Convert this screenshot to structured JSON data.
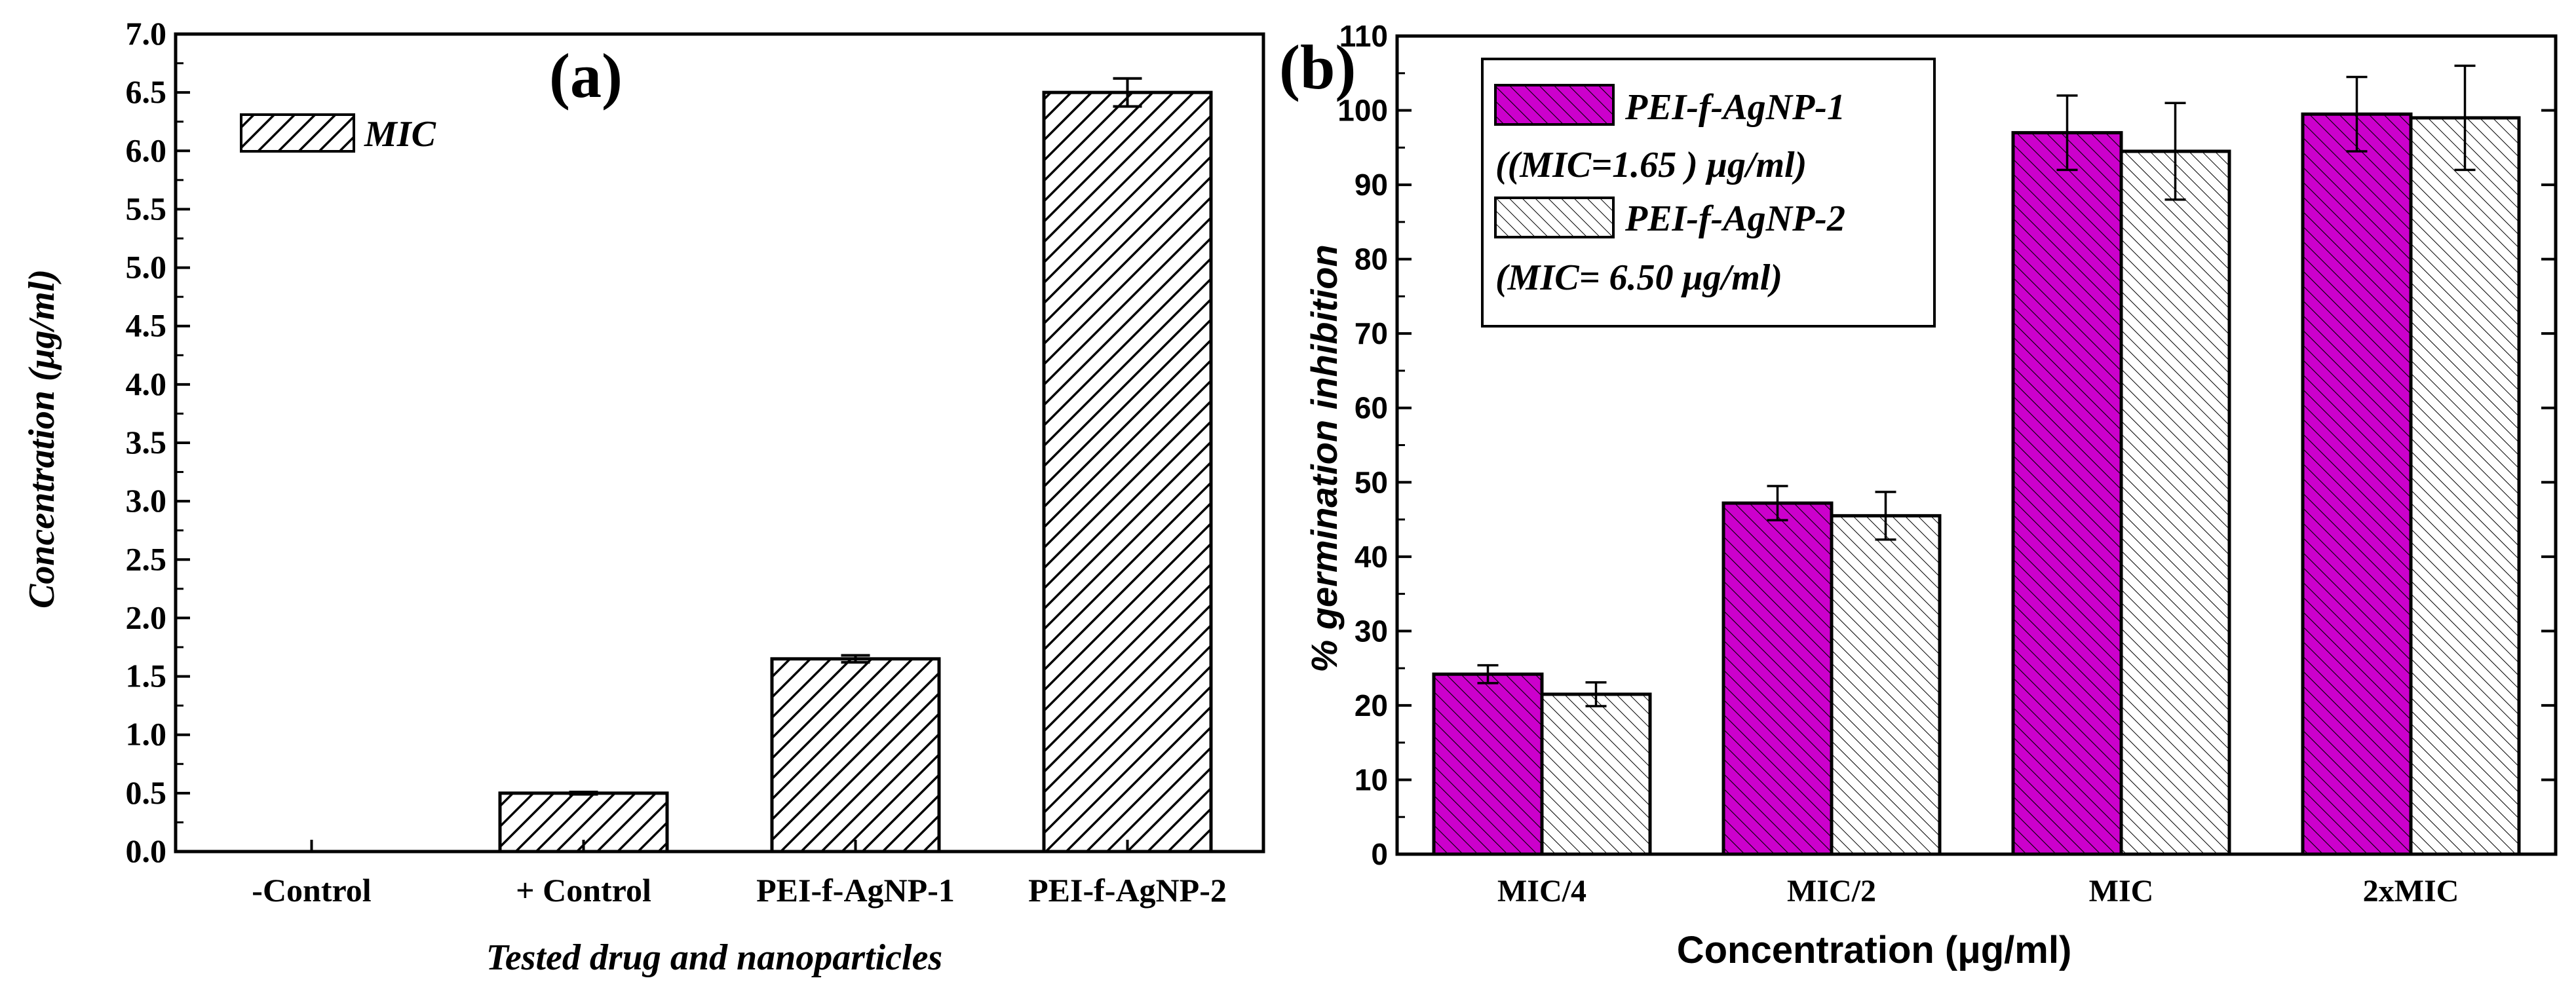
{
  "chart_data": [
    {
      "panel": "(a)",
      "type": "bar",
      "categories": [
        "-Control",
        "+ Control",
        "PEI-f-AgNP-1",
        "PEI-f-AgNP-2"
      ],
      "values": [
        0.0,
        0.5,
        1.65,
        6.5
      ],
      "errors": [
        0.0,
        0.01,
        0.03,
        0.12
      ],
      "ylim": [
        0,
        7.0
      ],
      "yticks": [
        "0.0",
        "0.5",
        "1.0",
        "1.5",
        "2.0",
        "2.5",
        "3.0",
        "3.5",
        "4.0",
        "4.5",
        "5.0",
        "5.5",
        "6.0",
        "6.5",
        "7.0"
      ],
      "ylabel": "Concentration (μg/ml)",
      "xlabel": "Tested drug and nanoparticles",
      "legend": [
        "MIC"
      ],
      "legend_position": "top-left",
      "bar_color": "#ffffff",
      "hatch": "backslash"
    },
    {
      "panel": "(b)",
      "type": "bar",
      "categories": [
        "MIC/4",
        "MIC/2",
        "MIC",
        "2xMIC"
      ],
      "series": [
        {
          "name": "PEI-f-AgNP-1",
          "name_sub": "((MIC=1.65 ) μg/ml)",
          "values": [
            24.2,
            47.2,
            97.0,
            99.5
          ],
          "errors": [
            1.2,
            2.3,
            5.0,
            5.0
          ],
          "color": "#cc00cc"
        },
        {
          "name": "PEI-f-AgNP-2",
          "name_sub": "(MIC= 6.50 μg/ml)",
          "values": [
            21.5,
            45.5,
            94.5,
            99.0
          ],
          "errors": [
            1.6,
            3.2,
            6.5,
            7.0
          ],
          "color": "#ffffff"
        }
      ],
      "ylim": [
        0,
        110
      ],
      "yticks": [
        "0",
        "10",
        "20",
        "30",
        "40",
        "50",
        "60",
        "70",
        "80",
        "90",
        "100",
        "110"
      ],
      "ylabel": "% germination inhibition",
      "xlabel": "Concentration (μg/ml)",
      "legend_position": "top-left"
    }
  ]
}
